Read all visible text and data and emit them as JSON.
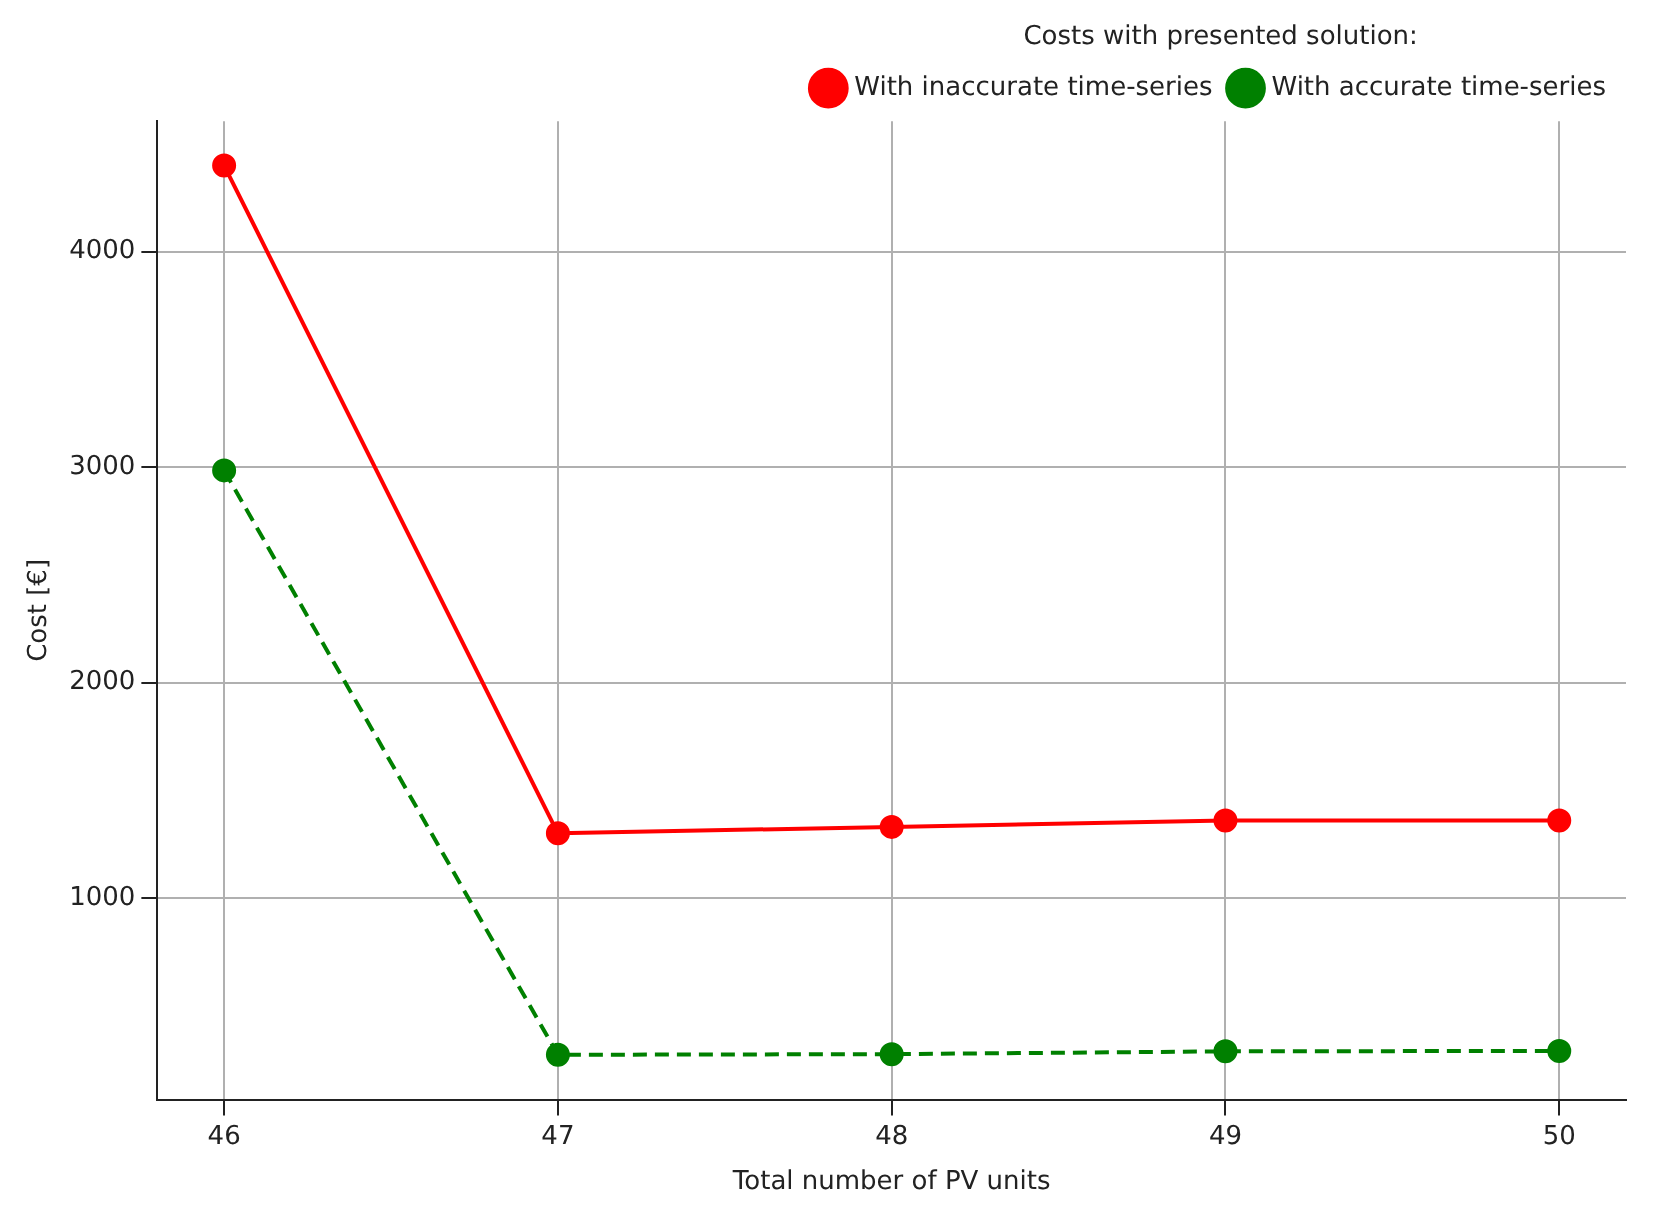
{
  "chart_data": {
    "type": "line",
    "xlabel": "Total number of PV units",
    "ylabel": "Cost [€]",
    "legend_title": "Costs with presented solution:",
    "x": [
      46,
      47,
      48,
      49,
      50
    ],
    "series": [
      {
        "name": "With inaccurate time-series",
        "color": "#ff0000",
        "values": [
          4400,
          1300,
          1330,
          1360,
          1360
        ],
        "line_style": "solid"
      },
      {
        "name": "With accurate time-series",
        "color": "#008000",
        "values": [
          2985,
          272,
          275,
          288,
          290
        ],
        "line_style": "dashed"
      }
    ],
    "xlim": [
      45.8,
      50.2
    ],
    "xticks": [
      46,
      47,
      48,
      49,
      50
    ],
    "ylim": [
      64,
      4606
    ],
    "yticks": [
      1000,
      2000,
      3000,
      4000
    ],
    "grid": true,
    "legend": "top right",
    "marker": "circle"
  }
}
